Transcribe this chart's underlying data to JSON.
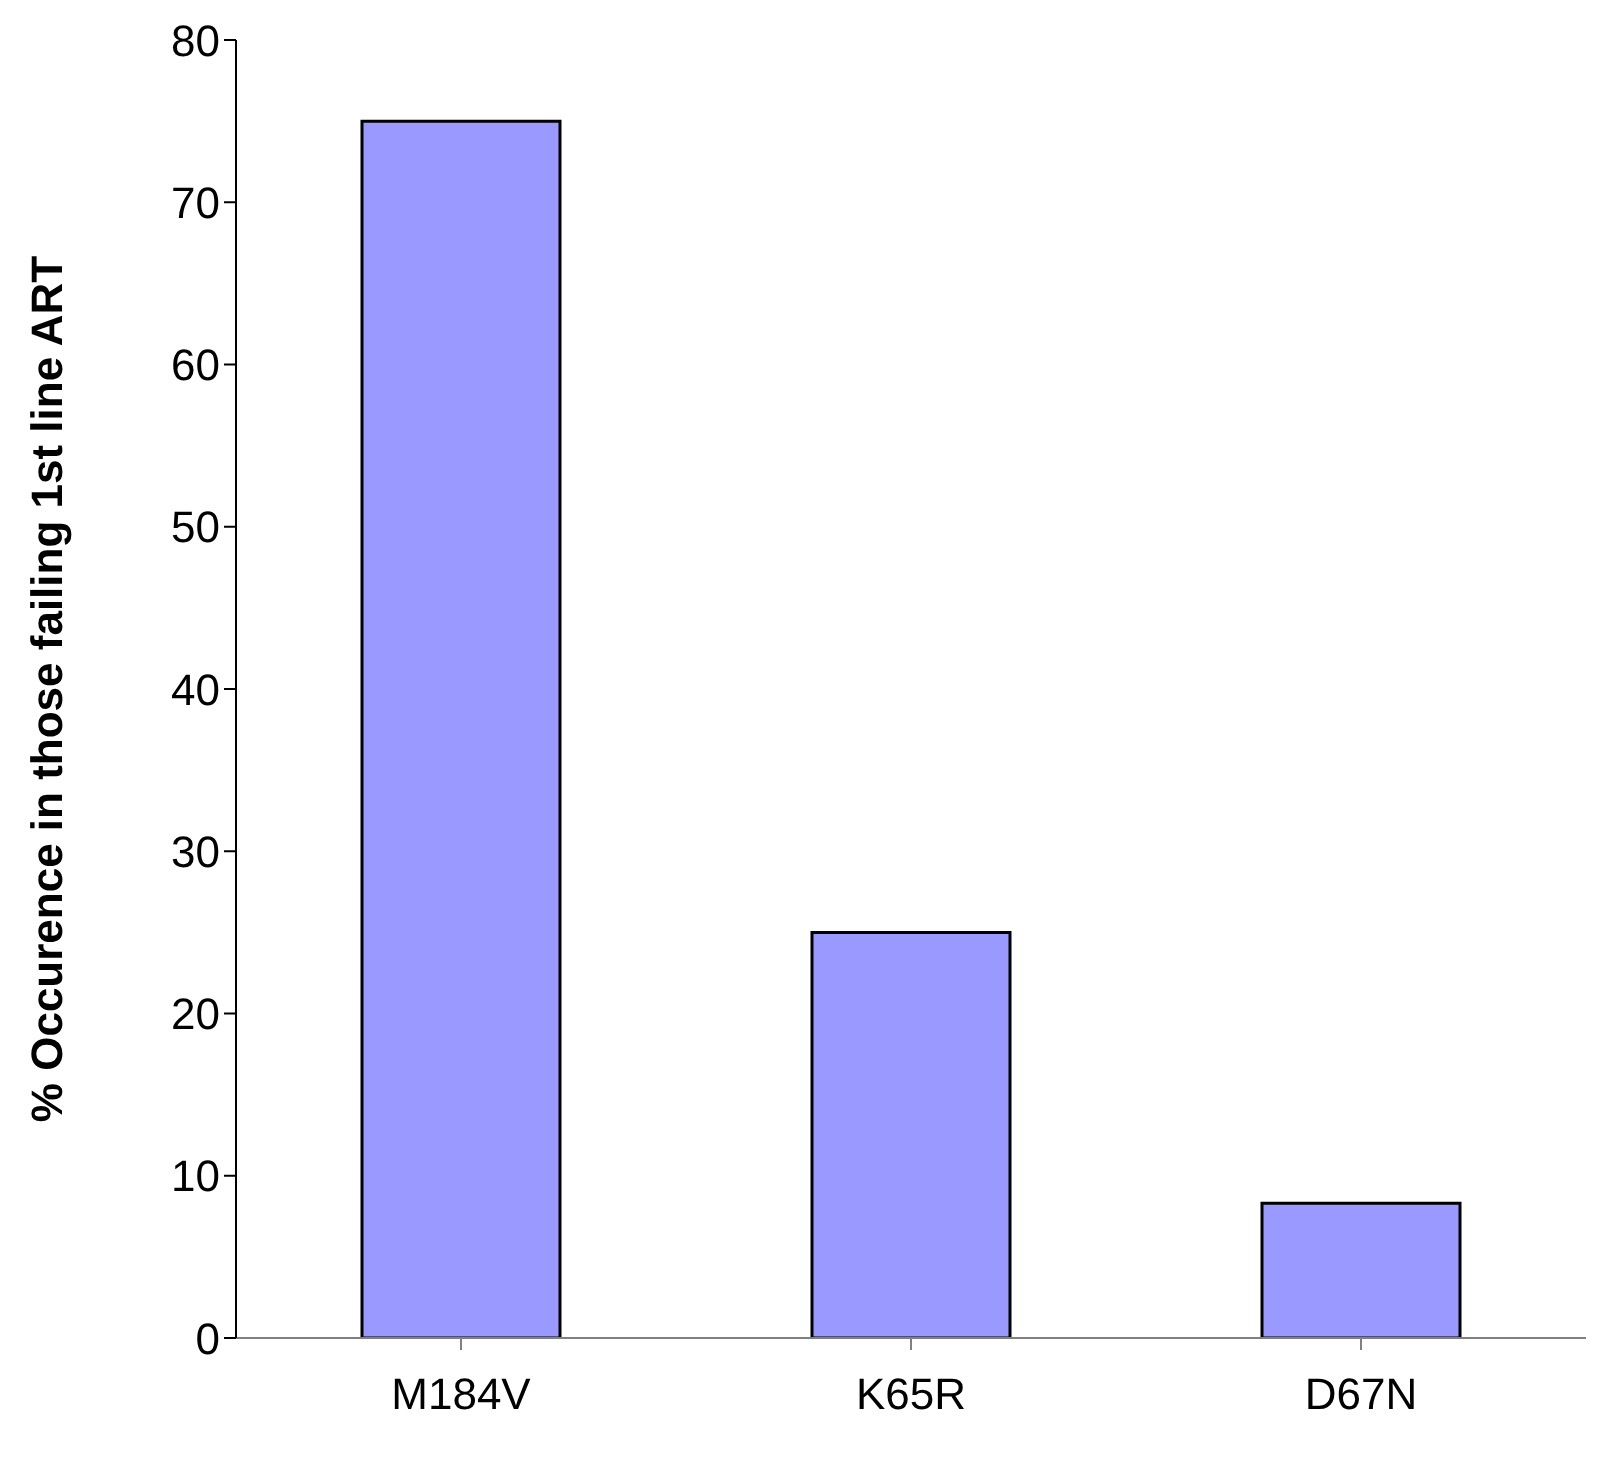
{
  "chart_data": {
    "type": "bar",
    "ylabel": "% Occurence in those failing 1st line ART",
    "categories": [
      "M184V",
      "K65R",
      "D67N"
    ],
    "values": [
      75,
      25,
      8.3
    ],
    "color": "#9999ff",
    "ylim": [
      0,
      80
    ],
    "yticks": [
      0,
      10,
      20,
      30,
      40,
      50,
      60,
      70,
      80
    ],
    "grid": false,
    "legend": false
  }
}
